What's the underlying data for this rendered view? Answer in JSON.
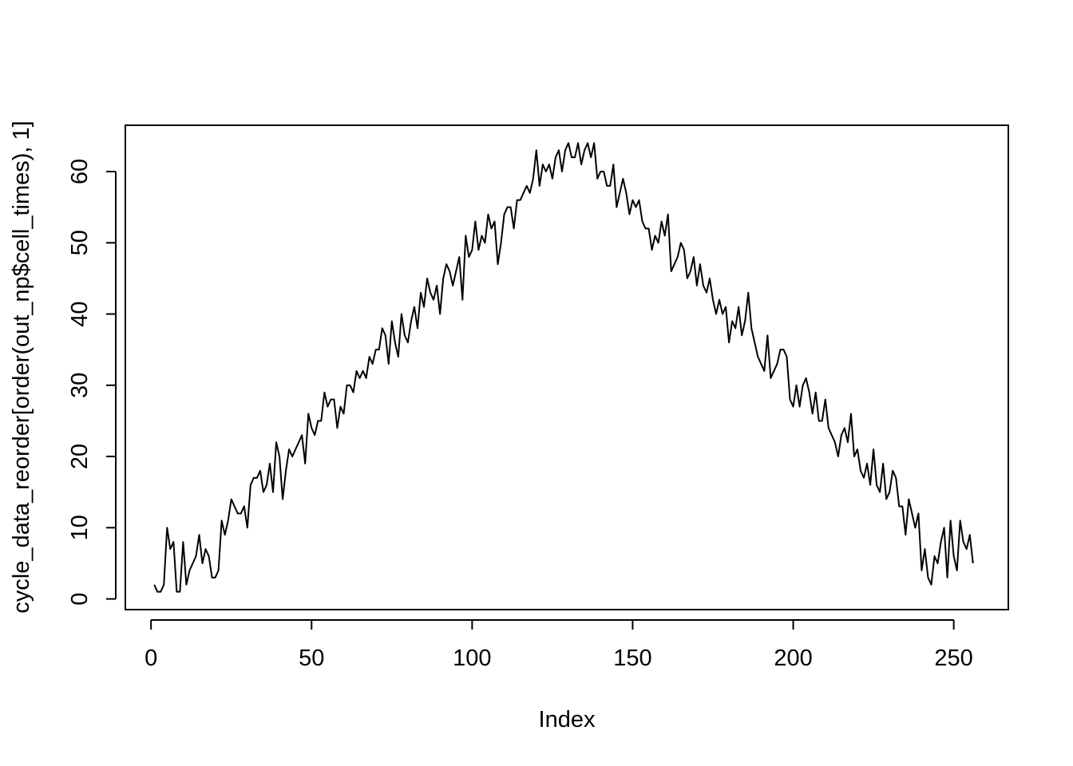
{
  "chart_data": {
    "type": "line",
    "title": "",
    "xlabel": "Index",
    "ylabel": "cycle_data_reorder[order(out_np$cell_times), 1]",
    "xlim": [
      -8,
      267
    ],
    "ylim": [
      -1.5,
      66.5
    ],
    "xticks": [
      0,
      50,
      100,
      150,
      200,
      250
    ],
    "yticks": [
      0,
      10,
      20,
      30,
      40,
      50,
      60
    ],
    "grid": false,
    "x": [
      1,
      2,
      3,
      4,
      5,
      6,
      7,
      8,
      9,
      10,
      11,
      12,
      13,
      14,
      15,
      16,
      17,
      18,
      19,
      20,
      21,
      22,
      23,
      24,
      25,
      26,
      27,
      28,
      29,
      30,
      31,
      32,
      33,
      34,
      35,
      36,
      37,
      38,
      39,
      40,
      41,
      42,
      43,
      44,
      45,
      46,
      47,
      48,
      49,
      50,
      51,
      52,
      53,
      54,
      55,
      56,
      57,
      58,
      59,
      60,
      61,
      62,
      63,
      64,
      65,
      66,
      67,
      68,
      69,
      70,
      71,
      72,
      73,
      74,
      75,
      76,
      77,
      78,
      79,
      80,
      81,
      82,
      83,
      84,
      85,
      86,
      87,
      88,
      89,
      90,
      91,
      92,
      93,
      94,
      95,
      96,
      97,
      98,
      99,
      100,
      101,
      102,
      103,
      104,
      105,
      106,
      107,
      108,
      109,
      110,
      111,
      112,
      113,
      114,
      115,
      116,
      117,
      118,
      119,
      120,
      121,
      122,
      123,
      124,
      125,
      126,
      127,
      128,
      129,
      130,
      131,
      132,
      133,
      134,
      135,
      136,
      137,
      138,
      139,
      140,
      141,
      142,
      143,
      144,
      145,
      146,
      147,
      148,
      149,
      150,
      151,
      152,
      153,
      154,
      155,
      156,
      157,
      158,
      159,
      160,
      161,
      162,
      163,
      164,
      165,
      166,
      167,
      168,
      169,
      170,
      171,
      172,
      173,
      174,
      175,
      176,
      177,
      178,
      179,
      180,
      181,
      182,
      183,
      184,
      185,
      186,
      187,
      188,
      189,
      190,
      191,
      192,
      193,
      194,
      195,
      196,
      197,
      198,
      199,
      200,
      201,
      202,
      203,
      204,
      205,
      206,
      207,
      208,
      209,
      210,
      211,
      212,
      213,
      214,
      215,
      216,
      217,
      218,
      219,
      220,
      221,
      222,
      223,
      224,
      225,
      226,
      227,
      228,
      229,
      230,
      231,
      232,
      233,
      234,
      235,
      236,
      237,
      238,
      239,
      240,
      241,
      242,
      243,
      244,
      245,
      246,
      247,
      248,
      249,
      250,
      251,
      252,
      253,
      254,
      255,
      256
    ],
    "y": [
      2,
      1,
      1,
      2,
      10,
      7,
      8,
      1,
      1,
      8,
      2,
      4,
      5,
      6,
      9,
      5,
      7,
      6,
      3,
      3,
      4,
      11,
      9,
      11,
      14,
      13,
      12,
      12,
      13,
      10,
      16,
      17,
      17,
      18,
      15,
      16,
      19,
      15,
      22,
      20,
      14,
      18,
      21,
      20,
      21,
      22,
      23,
      19,
      26,
      24,
      23,
      25,
      25,
      29,
      27,
      28,
      28,
      24,
      27,
      26,
      30,
      30,
      29,
      32,
      31,
      32,
      31,
      34,
      33,
      35,
      35,
      38,
      37,
      33,
      39,
      36,
      34,
      40,
      37,
      36,
      39,
      41,
      38,
      43,
      41,
      45,
      43,
      42,
      44,
      40,
      45,
      47,
      46,
      44,
      46,
      48,
      42,
      51,
      48,
      49,
      53,
      49,
      51,
      50,
      54,
      52,
      53,
      47,
      50,
      54,
      55,
      55,
      52,
      56,
      56,
      57,
      58,
      57,
      59,
      63,
      58,
      61,
      60,
      61,
      59,
      62,
      63,
      60,
      63,
      64,
      62,
      62,
      64,
      61,
      63,
      64,
      62,
      64,
      59,
      60,
      60,
      58,
      58,
      61,
      55,
      57,
      59,
      57,
      54,
      56,
      55,
      56,
      53,
      52,
      52,
      49,
      51,
      50,
      53,
      51,
      54,
      46,
      47,
      48,
      50,
      49,
      45,
      46,
      48,
      44,
      47,
      44,
      43,
      45,
      42,
      40,
      42,
      40,
      41,
      36,
      39,
      38,
      41,
      37,
      39,
      43,
      38,
      36,
      34,
      33,
      32,
      37,
      31,
      32,
      33,
      35,
      35,
      34,
      28,
      27,
      30,
      27,
      30,
      31,
      29,
      26,
      29,
      25,
      25,
      28,
      24,
      23,
      22,
      20,
      23,
      24,
      22,
      26,
      20,
      21,
      18,
      17,
      19,
      16,
      21,
      16,
      15,
      19,
      14,
      15,
      18,
      17,
      13,
      13,
      9,
      14,
      12,
      10,
      12,
      4,
      7,
      3,
      2,
      6,
      5,
      8,
      10,
      3,
      11,
      6,
      4,
      11,
      8,
      7,
      9,
      5
    ]
  }
}
